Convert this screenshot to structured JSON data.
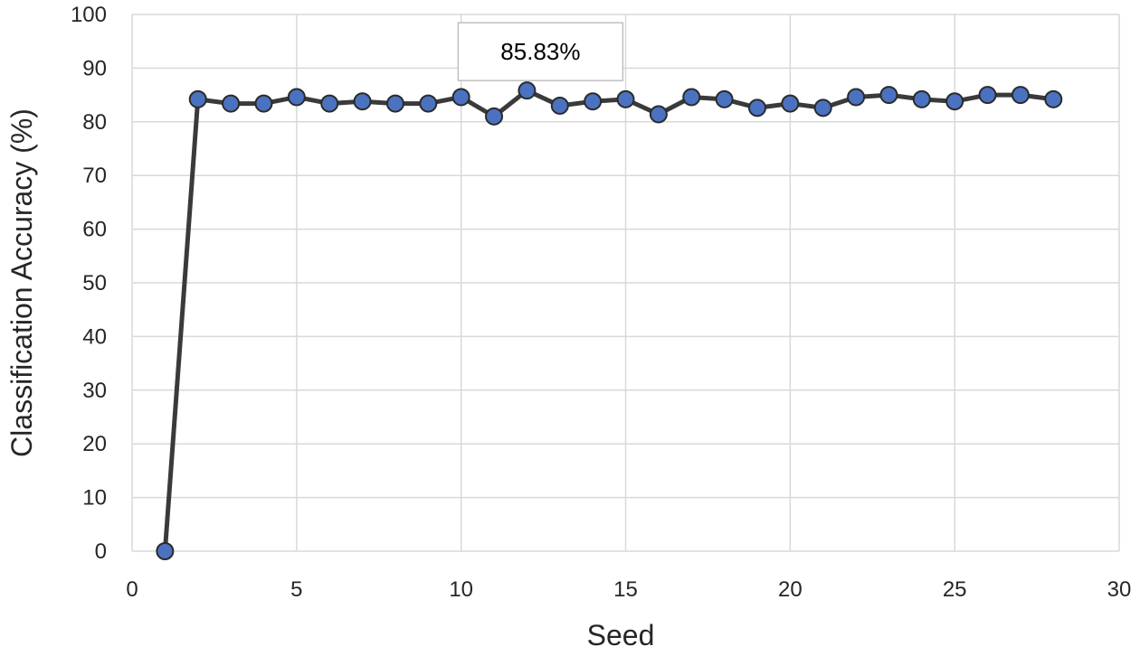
{
  "chart_data": {
    "type": "line",
    "title": "",
    "xlabel": "Seed",
    "ylabel": "Classification Accuracy (%)",
    "xlim": [
      0,
      30
    ],
    "ylim": [
      0,
      100
    ],
    "xticks": [
      0,
      5,
      10,
      15,
      20,
      25,
      30
    ],
    "yticks": [
      0,
      10,
      20,
      30,
      40,
      50,
      60,
      70,
      80,
      90,
      100
    ],
    "grid": true,
    "legend": "none",
    "colors": {
      "line": "#3a3a3a",
      "marker_fill": "#4a72c0",
      "marker_stroke": "#2b2b2b",
      "grid": "#d9d9d9"
    },
    "series": [
      {
        "x": [
          1,
          2,
          3,
          4,
          5,
          6,
          7,
          8,
          9,
          10,
          11,
          12,
          13,
          14,
          15,
          16,
          17,
          18,
          19,
          20,
          21,
          22,
          23,
          24,
          25,
          26,
          27,
          28
        ],
        "values": [
          0,
          84.2,
          83.4,
          83.4,
          84.6,
          83.4,
          83.8,
          83.4,
          83.4,
          84.6,
          81.0,
          85.83,
          83.0,
          83.8,
          84.2,
          81.4,
          84.6,
          84.2,
          82.6,
          83.4,
          82.6,
          84.6,
          85.0,
          84.2,
          83.8,
          85.0,
          85.0,
          84.2
        ]
      }
    ],
    "annotations": [
      {
        "text": "85.83%",
        "x": 12,
        "y": 85.83
      }
    ]
  }
}
